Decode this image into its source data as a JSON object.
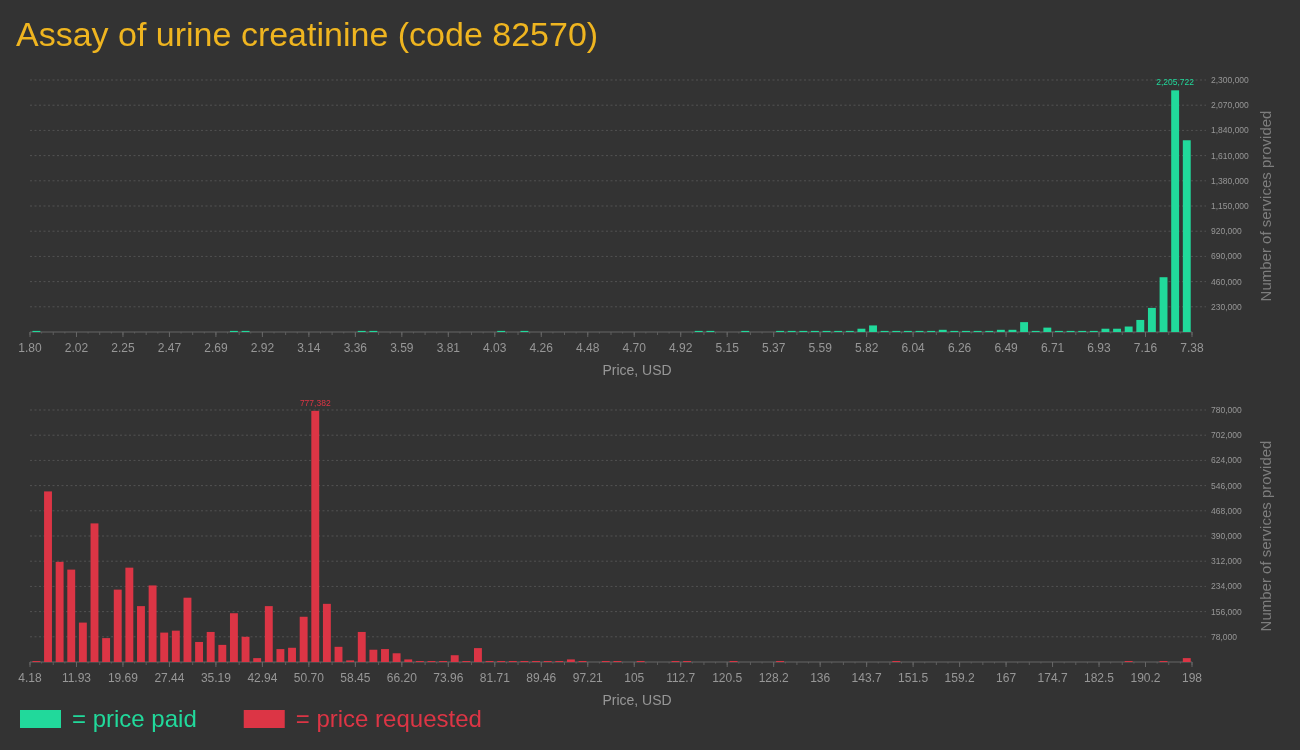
{
  "chart_data": [
    {
      "type": "histogram",
      "title": "Assay of urine creatinine (code 82570)",
      "xlabel": "Price, USD",
      "ylabel": "Number of services provided",
      "grid": "y",
      "legend": "bottom left",
      "xlim": [
        1.8,
        7.38
      ],
      "xticks": [
        {
          "value": 1.8,
          "label": "1.80"
        },
        {
          "value": 2.0232,
          "label": "2.02"
        },
        {
          "value": 2.2464,
          "label": "2.25"
        },
        {
          "value": 2.4696,
          "label": "2.47"
        },
        {
          "value": 2.6928,
          "label": "2.69"
        },
        {
          "value": 2.916,
          "label": "2.92"
        },
        {
          "value": 3.1392,
          "label": "3.14"
        },
        {
          "value": 3.3624,
          "label": "3.36"
        },
        {
          "value": 3.5856,
          "label": "3.59"
        },
        {
          "value": 3.8088,
          "label": "3.81"
        },
        {
          "value": 4.032,
          "label": "4.03"
        },
        {
          "value": 4.2552,
          "label": "4.26"
        },
        {
          "value": 4.4784,
          "label": "4.48"
        },
        {
          "value": 4.7016,
          "label": "4.70"
        },
        {
          "value": 4.9248,
          "label": "4.92"
        },
        {
          "value": 5.148,
          "label": "5.15"
        },
        {
          "value": 5.3712,
          "label": "5.37"
        },
        {
          "value": 5.5944,
          "label": "5.59"
        },
        {
          "value": 5.8176,
          "label": "5.82"
        },
        {
          "value": 6.0408,
          "label": "6.04"
        },
        {
          "value": 6.264,
          "label": "6.26"
        },
        {
          "value": 6.4872,
          "label": "6.49"
        },
        {
          "value": 6.7104,
          "label": "6.71"
        },
        {
          "value": 6.9336,
          "label": "6.93"
        },
        {
          "value": 7.1568,
          "label": "7.16"
        },
        {
          "value": 7.38,
          "label": "7.38"
        }
      ],
      "ylim": [
        0,
        2300000
      ],
      "yticks": [
        {
          "value": 230000,
          "label": "230,000"
        },
        {
          "value": 460000,
          "label": "460,000"
        },
        {
          "value": 690000,
          "label": "690,000"
        },
        {
          "value": 920000,
          "label": "920,000"
        },
        {
          "value": 1150000,
          "label": "1,150,000"
        },
        {
          "value": 1380000,
          "label": "1,380,000"
        },
        {
          "value": 1610000,
          "label": "1,610,000"
        },
        {
          "value": 1840000,
          "label": "1,840,000"
        },
        {
          "value": 2070000,
          "label": "2,070,000"
        },
        {
          "value": 2300000,
          "label": "2,300,000"
        }
      ],
      "bins": [
        1.8,
        1.8558,
        1.9116,
        1.9674,
        2.0232,
        2.079,
        2.1348,
        2.1906,
        2.2464,
        2.3022,
        2.358,
        2.4138,
        2.4696,
        2.5254,
        2.5812,
        2.637,
        2.6928,
        2.7486,
        2.8044,
        2.8602,
        2.916,
        2.9718,
        3.0276,
        3.0834,
        3.1392,
        3.195,
        3.2508,
        3.3066,
        3.3624,
        3.4182,
        3.474,
        3.5298,
        3.5856,
        3.6414,
        3.6972,
        3.753,
        3.8088,
        3.8646,
        3.9204,
        3.9762,
        4.032,
        4.0878,
        4.1436,
        4.1994,
        4.2552,
        4.311,
        4.3668,
        4.4226,
        4.4784,
        4.5342,
        4.59,
        4.6458,
        4.7016,
        4.7574,
        4.8132,
        4.869,
        4.9248,
        4.9806,
        5.0364,
        5.0922,
        5.148,
        5.2038,
        5.2596,
        5.3154,
        5.3712,
        5.427,
        5.4828,
        5.5386,
        5.5944,
        5.6502,
        5.706,
        5.7618,
        5.8176,
        5.8734,
        5.9292,
        5.985,
        6.0408,
        6.0966,
        6.1524,
        6.2082,
        6.264,
        6.3198,
        6.3756,
        6.4314,
        6.4872,
        6.543,
        6.5988,
        6.6546,
        6.7104,
        6.7662,
        6.822,
        6.8778,
        6.9336,
        6.9894,
        7.0452,
        7.101,
        7.1568,
        7.2126,
        7.2684,
        7.3242,
        7.38
      ],
      "series": [
        {
          "name": "= price paid",
          "color": "#21d99b",
          "values": [
            10000,
            0,
            0,
            0,
            0,
            0,
            0,
            0,
            0,
            0,
            0,
            0,
            0,
            0,
            0,
            0,
            0,
            10000,
            10000,
            0,
            0,
            0,
            0,
            0,
            0,
            0,
            0,
            0,
            10000,
            10000,
            0,
            0,
            0,
            0,
            0,
            0,
            0,
            0,
            0,
            0,
            10000,
            0,
            10000,
            0,
            0,
            0,
            0,
            0,
            0,
            0,
            0,
            0,
            0,
            0,
            0,
            0,
            0,
            10000,
            10000,
            0,
            0,
            10000,
            0,
            0,
            10000,
            10000,
            10000,
            10000,
            10000,
            10000,
            10000,
            30000,
            60000,
            10000,
            10000,
            10000,
            10000,
            10000,
            20000,
            10000,
            10000,
            10000,
            10000,
            20000,
            20000,
            90000,
            10000,
            40000,
            10000,
            10000,
            10000,
            10000,
            30000,
            30000,
            50000,
            110000,
            220000,
            500000,
            2205722,
            1750000
          ],
          "value_labels": [
            null,
            null,
            null,
            null,
            null,
            null,
            null,
            null,
            null,
            null,
            null,
            null,
            null,
            null,
            null,
            null,
            null,
            null,
            null,
            null,
            null,
            null,
            null,
            null,
            null,
            null,
            null,
            null,
            null,
            null,
            null,
            null,
            null,
            null,
            null,
            null,
            null,
            null,
            null,
            null,
            null,
            null,
            null,
            null,
            null,
            null,
            null,
            null,
            null,
            null,
            null,
            null,
            null,
            null,
            null,
            null,
            null,
            null,
            null,
            null,
            null,
            null,
            null,
            null,
            null,
            null,
            null,
            null,
            null,
            null,
            null,
            null,
            null,
            null,
            null,
            null,
            null,
            null,
            null,
            null,
            null,
            null,
            null,
            null,
            null,
            null,
            null,
            null,
            null,
            null,
            null,
            null,
            null,
            null,
            null,
            null,
            null,
            null,
            "2,205,722",
            null
          ]
        }
      ]
    },
    {
      "type": "histogram",
      "xlabel": "Price, USD",
      "ylabel": "Number of services provided",
      "grid": "y",
      "legend": "bottom left",
      "xlim": [
        4.18,
        198
      ],
      "xticks": [
        {
          "value": 4.18,
          "label": "4.18"
        },
        {
          "value": 11.9328,
          "label": "11.93"
        },
        {
          "value": 19.6856,
          "label": "19.69"
        },
        {
          "value": 27.4384,
          "label": "27.44"
        },
        {
          "value": 35.1912,
          "label": "35.19"
        },
        {
          "value": 42.944,
          "label": "42.94"
        },
        {
          "value": 50.6968,
          "label": "50.70"
        },
        {
          "value": 58.4496,
          "label": "58.45"
        },
        {
          "value": 66.2024,
          "label": "66.20"
        },
        {
          "value": 73.9552,
          "label": "73.96"
        },
        {
          "value": 81.708,
          "label": "81.71"
        },
        {
          "value": 89.4608,
          "label": "89.46"
        },
        {
          "value": 97.2136,
          "label": "97.21"
        },
        {
          "value": 104.9664,
          "label": "105"
        },
        {
          "value": 112.7192,
          "label": "112.7"
        },
        {
          "value": 120.472,
          "label": "120.5"
        },
        {
          "value": 128.2248,
          "label": "128.2"
        },
        {
          "value": 135.9776,
          "label": "136"
        },
        {
          "value": 143.7304,
          "label": "143.7"
        },
        {
          "value": 151.4832,
          "label": "151.5"
        },
        {
          "value": 159.236,
          "label": "159.2"
        },
        {
          "value": 166.9888,
          "label": "167"
        },
        {
          "value": 174.7416,
          "label": "174.7"
        },
        {
          "value": 182.4944,
          "label": "182.5"
        },
        {
          "value": 190.2472,
          "label": "190.2"
        },
        {
          "value": 198,
          "label": "198"
        }
      ],
      "ylim": [
        0,
        780000
      ],
      "yticks": [
        {
          "value": 78000,
          "label": "78,000"
        },
        {
          "value": 156000,
          "label": "156,000"
        },
        {
          "value": 234000,
          "label": "234,000"
        },
        {
          "value": 312000,
          "label": "312,000"
        },
        {
          "value": 390000,
          "label": "390,000"
        },
        {
          "value": 468000,
          "label": "468,000"
        },
        {
          "value": 546000,
          "label": "546,000"
        },
        {
          "value": 624000,
          "label": "624,000"
        },
        {
          "value": 702000,
          "label": "702,000"
        },
        {
          "value": 780000,
          "label": "780,000"
        }
      ],
      "bins": [
        4.18,
        6.1182,
        8.0564,
        9.9946,
        11.9328,
        13.871,
        15.8092,
        17.7474,
        19.6856,
        21.6238,
        23.562,
        25.5002,
        27.4384,
        29.3766,
        31.3148,
        33.253,
        35.1912,
        37.1294,
        39.0676,
        41.0058,
        42.944,
        44.8822,
        46.8204,
        48.7586,
        50.6968,
        52.635,
        54.5732,
        56.5114,
        58.4496,
        60.3878,
        62.326,
        64.2642,
        66.2024,
        68.1406,
        70.0788,
        72.017,
        73.9552,
        75.8934,
        77.8316,
        79.7698,
        81.708,
        83.6462,
        85.5844,
        87.5226,
        89.4608,
        91.399,
        93.3372,
        95.2754,
        97.2136,
        99.1518,
        101.09,
        103.0282,
        104.9664,
        106.9046,
        108.8428,
        110.781,
        112.7192,
        114.6574,
        116.5956,
        118.5338,
        120.472,
        122.4102,
        124.3484,
        126.2866,
        128.2248,
        130.163,
        132.1012,
        134.0394,
        135.9776,
        137.9158,
        139.854,
        141.7922,
        143.7304,
        145.6686,
        147.6068,
        149.545,
        151.4832,
        153.4214,
        155.3596,
        157.2978,
        159.236,
        161.1742,
        163.1124,
        165.0506,
        166.9888,
        168.927,
        170.8652,
        172.8034,
        174.7416,
        176.6798,
        178.618,
        180.5562,
        182.4944,
        184.4326,
        186.3708,
        188.309,
        190.2472,
        192.1854,
        194.1236,
        196.0618,
        198
      ],
      "series": [
        {
          "name": "= price requested",
          "color": "#dc3545",
          "values": [
            3000,
            528000,
            310000,
            286000,
            122000,
            429000,
            74000,
            224000,
            292000,
            173000,
            237000,
            91000,
            97000,
            199000,
            62000,
            93000,
            53000,
            151000,
            78000,
            12000,
            173000,
            40000,
            44000,
            140000,
            777382,
            180000,
            47000,
            5000,
            93000,
            38000,
            40000,
            27000,
            8000,
            3000,
            3000,
            3000,
            21000,
            3000,
            43000,
            3000,
            3000,
            3000,
            3000,
            3000,
            3000,
            3000,
            8000,
            3000,
            0,
            3000,
            3000,
            0,
            3000,
            0,
            0,
            3000,
            3000,
            0,
            0,
            0,
            3000,
            0,
            0,
            0,
            3000,
            0,
            0,
            0,
            0,
            0,
            0,
            0,
            0,
            0,
            3000,
            0,
            0,
            0,
            0,
            0,
            0,
            0,
            0,
            0,
            0,
            0,
            0,
            0,
            0,
            0,
            0,
            0,
            0,
            0,
            3000,
            0,
            0,
            3000,
            0,
            12000
          ],
          "value_labels": [
            null,
            null,
            null,
            null,
            null,
            null,
            null,
            null,
            null,
            null,
            null,
            null,
            null,
            null,
            null,
            null,
            null,
            null,
            null,
            null,
            null,
            null,
            null,
            null,
            "777,382",
            null,
            null,
            null,
            null,
            null,
            null,
            null,
            null,
            null,
            null,
            null,
            null,
            null,
            null,
            null,
            null,
            null,
            null,
            null,
            null,
            null,
            null,
            null,
            null,
            null,
            null,
            null,
            null,
            null,
            null,
            null,
            null,
            null,
            null,
            null,
            null,
            null,
            null,
            null,
            null,
            null,
            null,
            null,
            null,
            null,
            null,
            null,
            null,
            null,
            null,
            null,
            null,
            null,
            null,
            null,
            null,
            null,
            null,
            null,
            null,
            null,
            null,
            null,
            null,
            null,
            null,
            null,
            null,
            null,
            null,
            null,
            null,
            null,
            null,
            null
          ]
        }
      ]
    }
  ]
}
